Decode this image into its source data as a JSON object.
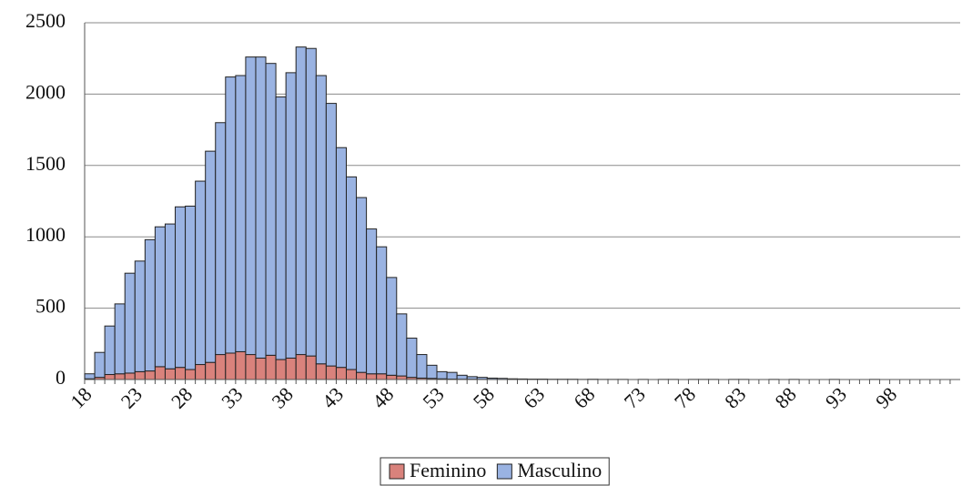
{
  "chart_data": {
    "type": "stacked_bar",
    "categories": [
      "18",
      null,
      null,
      null,
      null,
      "23",
      null,
      null,
      null,
      null,
      "28",
      null,
      null,
      null,
      null,
      "33",
      null,
      null,
      null,
      null,
      "38",
      null,
      null,
      null,
      null,
      "43",
      null,
      null,
      null,
      null,
      "48",
      null,
      null,
      null,
      null,
      "53",
      null,
      null,
      null,
      null,
      "58",
      null,
      null,
      null,
      null,
      "63",
      null,
      null,
      null,
      null,
      "68",
      null,
      null,
      null,
      null,
      "73",
      null,
      null,
      null,
      null,
      "78",
      null,
      null,
      null,
      null,
      "83",
      null,
      null,
      null,
      null,
      "88",
      null,
      null,
      null,
      null,
      "93",
      null,
      null,
      null,
      null,
      "98",
      null,
      null,
      null,
      null,
      null,
      null
    ],
    "series": [
      {
        "name": "Feminino",
        "color": "#d9827c",
        "values": [
          5,
          15,
          35,
          40,
          45,
          55,
          60,
          90,
          75,
          85,
          70,
          105,
          120,
          175,
          185,
          195,
          175,
          150,
          170,
          140,
          150,
          175,
          165,
          110,
          95,
          85,
          70,
          50,
          40,
          40,
          30,
          25,
          15,
          10,
          8,
          5,
          3,
          2,
          2,
          1,
          1,
          0,
          0,
          0,
          0,
          0,
          0,
          0,
          0,
          0,
          0,
          0,
          0,
          0,
          0,
          0,
          0,
          0,
          0,
          0,
          0,
          0,
          0,
          0,
          0,
          0,
          0,
          0,
          0,
          0,
          0,
          0,
          0,
          0,
          0,
          0,
          0,
          0,
          0,
          0,
          0,
          0,
          0,
          0,
          0,
          0,
          0
        ]
      },
      {
        "name": "Masculino",
        "color": "#9ab3e2",
        "values": [
          35,
          175,
          340,
          490,
          700,
          775,
          920,
          980,
          1015,
          1125,
          1145,
          1285,
          1480,
          1625,
          1935,
          1935,
          2085,
          2110,
          2045,
          1840,
          2000,
          2155,
          2155,
          2020,
          1840,
          1540,
          1350,
          1225,
          1015,
          890,
          685,
          435,
          275,
          165,
          92,
          50,
          47,
          28,
          18,
          14,
          9,
          8,
          5,
          4,
          3,
          3,
          2,
          2,
          2,
          1,
          2,
          1,
          1,
          1,
          0,
          1,
          0,
          1,
          1,
          0,
          1,
          1,
          1,
          0,
          1,
          1,
          0,
          0,
          1,
          0,
          1,
          0,
          0,
          0,
          1,
          0,
          0,
          0,
          1,
          0,
          0,
          0,
          0,
          0,
          0,
          0,
          0
        ]
      }
    ],
    "ylim": [
      0,
      2500
    ],
    "yticks": [
      0,
      500,
      1000,
      1500,
      2000,
      2500
    ],
    "grid": true,
    "legend": "bottom"
  }
}
